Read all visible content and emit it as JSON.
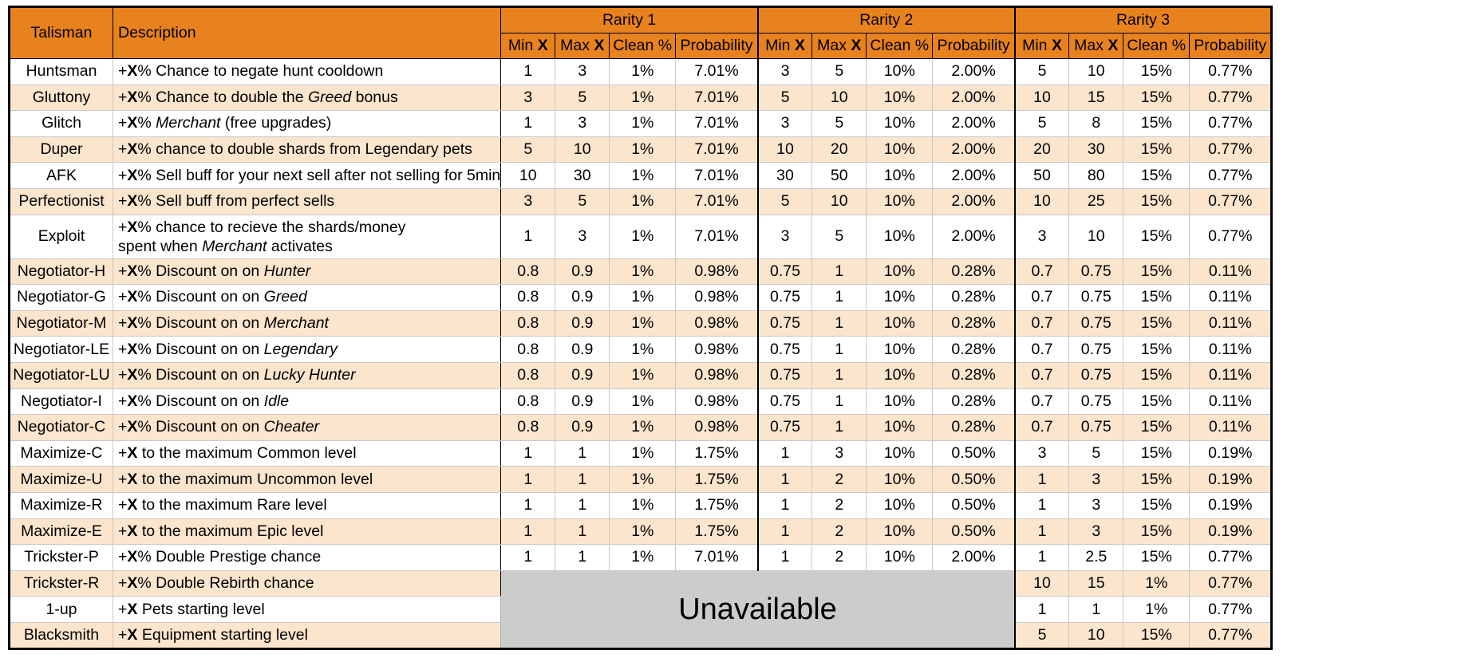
{
  "header": {
    "talisman": "Talisman",
    "description": "Description",
    "groups": [
      "Rarity 1",
      "Rarity 2",
      "Rarity 3"
    ],
    "sub": {
      "min": "Min",
      "max": "Max",
      "x": "X",
      "clean": "Clean %",
      "prob": "Probability"
    }
  },
  "unavailable": "Unavailable",
  "rows": [
    {
      "name": "Huntsman",
      "pre": "+",
      "bx": "X",
      "d1": "% Chance to negate hunt cooldown",
      "it": "",
      "d2": "",
      "r1": [
        "1",
        "3",
        "1%",
        "7.01%"
      ],
      "r2": [
        "3",
        "5",
        "10%",
        "2.00%"
      ],
      "r3": [
        "5",
        "10",
        "15%",
        "0.77%"
      ]
    },
    {
      "name": "Gluttony",
      "pre": "+",
      "bx": "X",
      "d1": "% Chance to double the ",
      "it": "Greed",
      "d2": " bonus",
      "r1": [
        "3",
        "5",
        "1%",
        "7.01%"
      ],
      "r2": [
        "5",
        "10",
        "10%",
        "2.00%"
      ],
      "r3": [
        "10",
        "15",
        "15%",
        "0.77%"
      ]
    },
    {
      "name": "Glitch",
      "pre": "+",
      "bx": "X",
      "d1": "% ",
      "it": "Merchant",
      "d2": " (free upgrades)",
      "r1": [
        "1",
        "3",
        "1%",
        "7.01%"
      ],
      "r2": [
        "3",
        "5",
        "10%",
        "2.00%"
      ],
      "r3": [
        "5",
        "8",
        "15%",
        "0.77%"
      ]
    },
    {
      "name": "Duper",
      "pre": "+",
      "bx": "X",
      "d1": "% chance to double shards from Legendary pets",
      "it": "",
      "d2": "",
      "r1": [
        "5",
        "10",
        "1%",
        "7.01%"
      ],
      "r2": [
        "10",
        "20",
        "10%",
        "2.00%"
      ],
      "r3": [
        "20",
        "30",
        "15%",
        "0.77%"
      ]
    },
    {
      "name": "AFK",
      "pre": "+",
      "bx": "X",
      "d1": "% Sell buff for your next sell after not selling for 5min",
      "it": "",
      "d2": "",
      "r1": [
        "10",
        "30",
        "1%",
        "7.01%"
      ],
      "r2": [
        "30",
        "50",
        "10%",
        "2.00%"
      ],
      "r3": [
        "50",
        "80",
        "15%",
        "0.77%"
      ]
    },
    {
      "name": "Perfectionist",
      "pre": "+",
      "bx": "X",
      "d1": "% Sell buff from perfect sells",
      "it": "",
      "d2": "",
      "r1": [
        "3",
        "5",
        "1%",
        "7.01%"
      ],
      "r2": [
        "5",
        "10",
        "10%",
        "2.00%"
      ],
      "r3": [
        "10",
        "25",
        "15%",
        "0.77%"
      ]
    },
    {
      "name": "Exploit",
      "pre": "+",
      "bx": "X",
      "d1": "% chance to recieve the shards/money",
      "it": "",
      "d2": "",
      "line2": "spent when ",
      "it2": "Merchant",
      "d3": " activates",
      "r1": [
        "1",
        "3",
        "1%",
        "7.01%"
      ],
      "r2": [
        "3",
        "5",
        "10%",
        "2.00%"
      ],
      "r3": [
        "3",
        "10",
        "15%",
        "0.77%"
      ]
    },
    {
      "name": "Negotiator-H",
      "pre": "+",
      "bx": "X",
      "d1": "% Discount on on ",
      "it": "Hunter",
      "d2": "",
      "r1": [
        "0.8",
        "0.9",
        "1%",
        "0.98%"
      ],
      "r2": [
        "0.75",
        "1",
        "10%",
        "0.28%"
      ],
      "r3": [
        "0.7",
        "0.75",
        "15%",
        "0.11%"
      ]
    },
    {
      "name": "Negotiator-G",
      "pre": "+",
      "bx": "X",
      "d1": "% Discount on on ",
      "it": "Greed",
      "d2": "",
      "r1": [
        "0.8",
        "0.9",
        "1%",
        "0.98%"
      ],
      "r2": [
        "0.75",
        "1",
        "10%",
        "0.28%"
      ],
      "r3": [
        "0.7",
        "0.75",
        "15%",
        "0.11%"
      ]
    },
    {
      "name": "Negotiator-M",
      "pre": "+",
      "bx": "X",
      "d1": "% Discount on on ",
      "it": "Merchant",
      "d2": "",
      "r1": [
        "0.8",
        "0.9",
        "1%",
        "0.98%"
      ],
      "r2": [
        "0.75",
        "1",
        "10%",
        "0.28%"
      ],
      "r3": [
        "0.7",
        "0.75",
        "15%",
        "0.11%"
      ]
    },
    {
      "name": "Negotiator-LE",
      "pre": "+",
      "bx": "X",
      "d1": "% Discount on on ",
      "it": "Legendary",
      "d2": "",
      "r1": [
        "0.8",
        "0.9",
        "1%",
        "0.98%"
      ],
      "r2": [
        "0.75",
        "1",
        "10%",
        "0.28%"
      ],
      "r3": [
        "0.7",
        "0.75",
        "15%",
        "0.11%"
      ]
    },
    {
      "name": "Negotiator-LU",
      "pre": "+",
      "bx": "X",
      "d1": "% Discount on on ",
      "it": "Lucky Hunter",
      "d2": "",
      "r1": [
        "0.8",
        "0.9",
        "1%",
        "0.98%"
      ],
      "r2": [
        "0.75",
        "1",
        "10%",
        "0.28%"
      ],
      "r3": [
        "0.7",
        "0.75",
        "15%",
        "0.11%"
      ]
    },
    {
      "name": "Negotiator-I",
      "pre": "+",
      "bx": "X",
      "d1": "% Discount on on ",
      "it": "Idle",
      "d2": "",
      "r1": [
        "0.8",
        "0.9",
        "1%",
        "0.98%"
      ],
      "r2": [
        "0.75",
        "1",
        "10%",
        "0.28%"
      ],
      "r3": [
        "0.7",
        "0.75",
        "15%",
        "0.11%"
      ]
    },
    {
      "name": "Negotiator-C",
      "pre": "+",
      "bx": "X",
      "d1": "% Discount on on ",
      "it": "Cheater",
      "d2": "",
      "r1": [
        "0.8",
        "0.9",
        "1%",
        "0.98%"
      ],
      "r2": [
        "0.75",
        "1",
        "10%",
        "0.28%"
      ],
      "r3": [
        "0.7",
        "0.75",
        "15%",
        "0.11%"
      ]
    },
    {
      "name": "Maximize-C",
      "pre": "+",
      "bx": "X",
      "d1": " to the maximum Common level",
      "it": "",
      "d2": "",
      "r1": [
        "1",
        "1",
        "1%",
        "1.75%"
      ],
      "r2": [
        "1",
        "3",
        "10%",
        "0.50%"
      ],
      "r3": [
        "3",
        "5",
        "15%",
        "0.19%"
      ]
    },
    {
      "name": "Maximize-U",
      "pre": "+",
      "bx": "X",
      "d1": " to the maximum Uncommon level",
      "it": "",
      "d2": "",
      "r1": [
        "1",
        "1",
        "1%",
        "1.75%"
      ],
      "r2": [
        "1",
        "2",
        "10%",
        "0.50%"
      ],
      "r3": [
        "1",
        "3",
        "15%",
        "0.19%"
      ]
    },
    {
      "name": "Maximize-R",
      "pre": "+",
      "bx": "X",
      "d1": " to the maximum Rare level",
      "it": "",
      "d2": "",
      "r1": [
        "1",
        "1",
        "1%",
        "1.75%"
      ],
      "r2": [
        "1",
        "2",
        "10%",
        "0.50%"
      ],
      "r3": [
        "1",
        "3",
        "15%",
        "0.19%"
      ]
    },
    {
      "name": "Maximize-E",
      "pre": "+",
      "bx": "X",
      "d1": " to the maximum Epic level",
      "it": "",
      "d2": "",
      "r1": [
        "1",
        "1",
        "1%",
        "1.75%"
      ],
      "r2": [
        "1",
        "2",
        "10%",
        "0.50%"
      ],
      "r3": [
        "1",
        "3",
        "15%",
        "0.19%"
      ]
    },
    {
      "name": "Trickster-P",
      "pre": "+",
      "bx": "X",
      "d1": "% Double Prestige chance",
      "it": "",
      "d2": "",
      "r1": [
        "1",
        "1",
        "1%",
        "7.01%"
      ],
      "r2": [
        "1",
        "2",
        "10%",
        "2.00%"
      ],
      "r3": [
        "1",
        "2.5",
        "15%",
        "0.77%"
      ]
    },
    {
      "name": "Trickster-R",
      "pre": "+",
      "bx": "X",
      "d1": "% Double Rebirth chance",
      "it": "",
      "d2": "",
      "r1": null,
      "r2": null,
      "r3": [
        "10",
        "15",
        "1%",
        "0.77%"
      ]
    },
    {
      "name": "1-up",
      "pre": "+",
      "bx": "X",
      "d1": " Pets starting level",
      "it": "",
      "d2": "",
      "r1": null,
      "r2": null,
      "r3": [
        "1",
        "1",
        "1%",
        "0.77%"
      ]
    },
    {
      "name": "Blacksmith",
      "pre": "+",
      "bx": "X",
      "d1": " Equipment starting level",
      "it": "",
      "d2": "",
      "r1": null,
      "r2": null,
      "r3": [
        "5",
        "10",
        "15%",
        "0.77%"
      ]
    }
  ]
}
